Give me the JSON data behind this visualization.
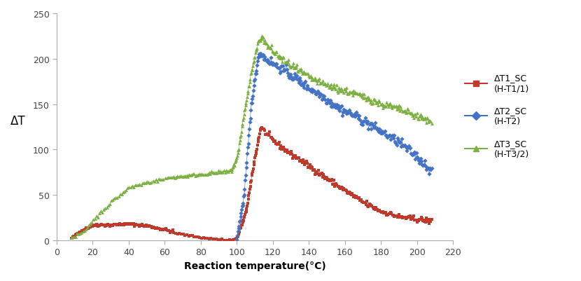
{
  "xlabel": "Reaction temperature(°C)",
  "ylabel": "ΔT",
  "xlim": [
    0,
    220
  ],
  "ylim": [
    0,
    250
  ],
  "xticks": [
    0,
    20,
    40,
    60,
    80,
    100,
    120,
    140,
    160,
    180,
    200,
    220
  ],
  "yticks": [
    0,
    50,
    100,
    150,
    200,
    250
  ],
  "legend": [
    {
      "label": "ΔT1_SC\n(H-T1/1)",
      "color": "#c0392b",
      "marker": "s"
    },
    {
      "label": "ΔT2_SC\n(H-T2)",
      "color": "#4472c4",
      "marker": "D"
    },
    {
      "label": "ΔT3_SC\n(H-T3/2)",
      "color": "#7cb142",
      "marker": "^"
    }
  ],
  "background_color": "#ffffff"
}
